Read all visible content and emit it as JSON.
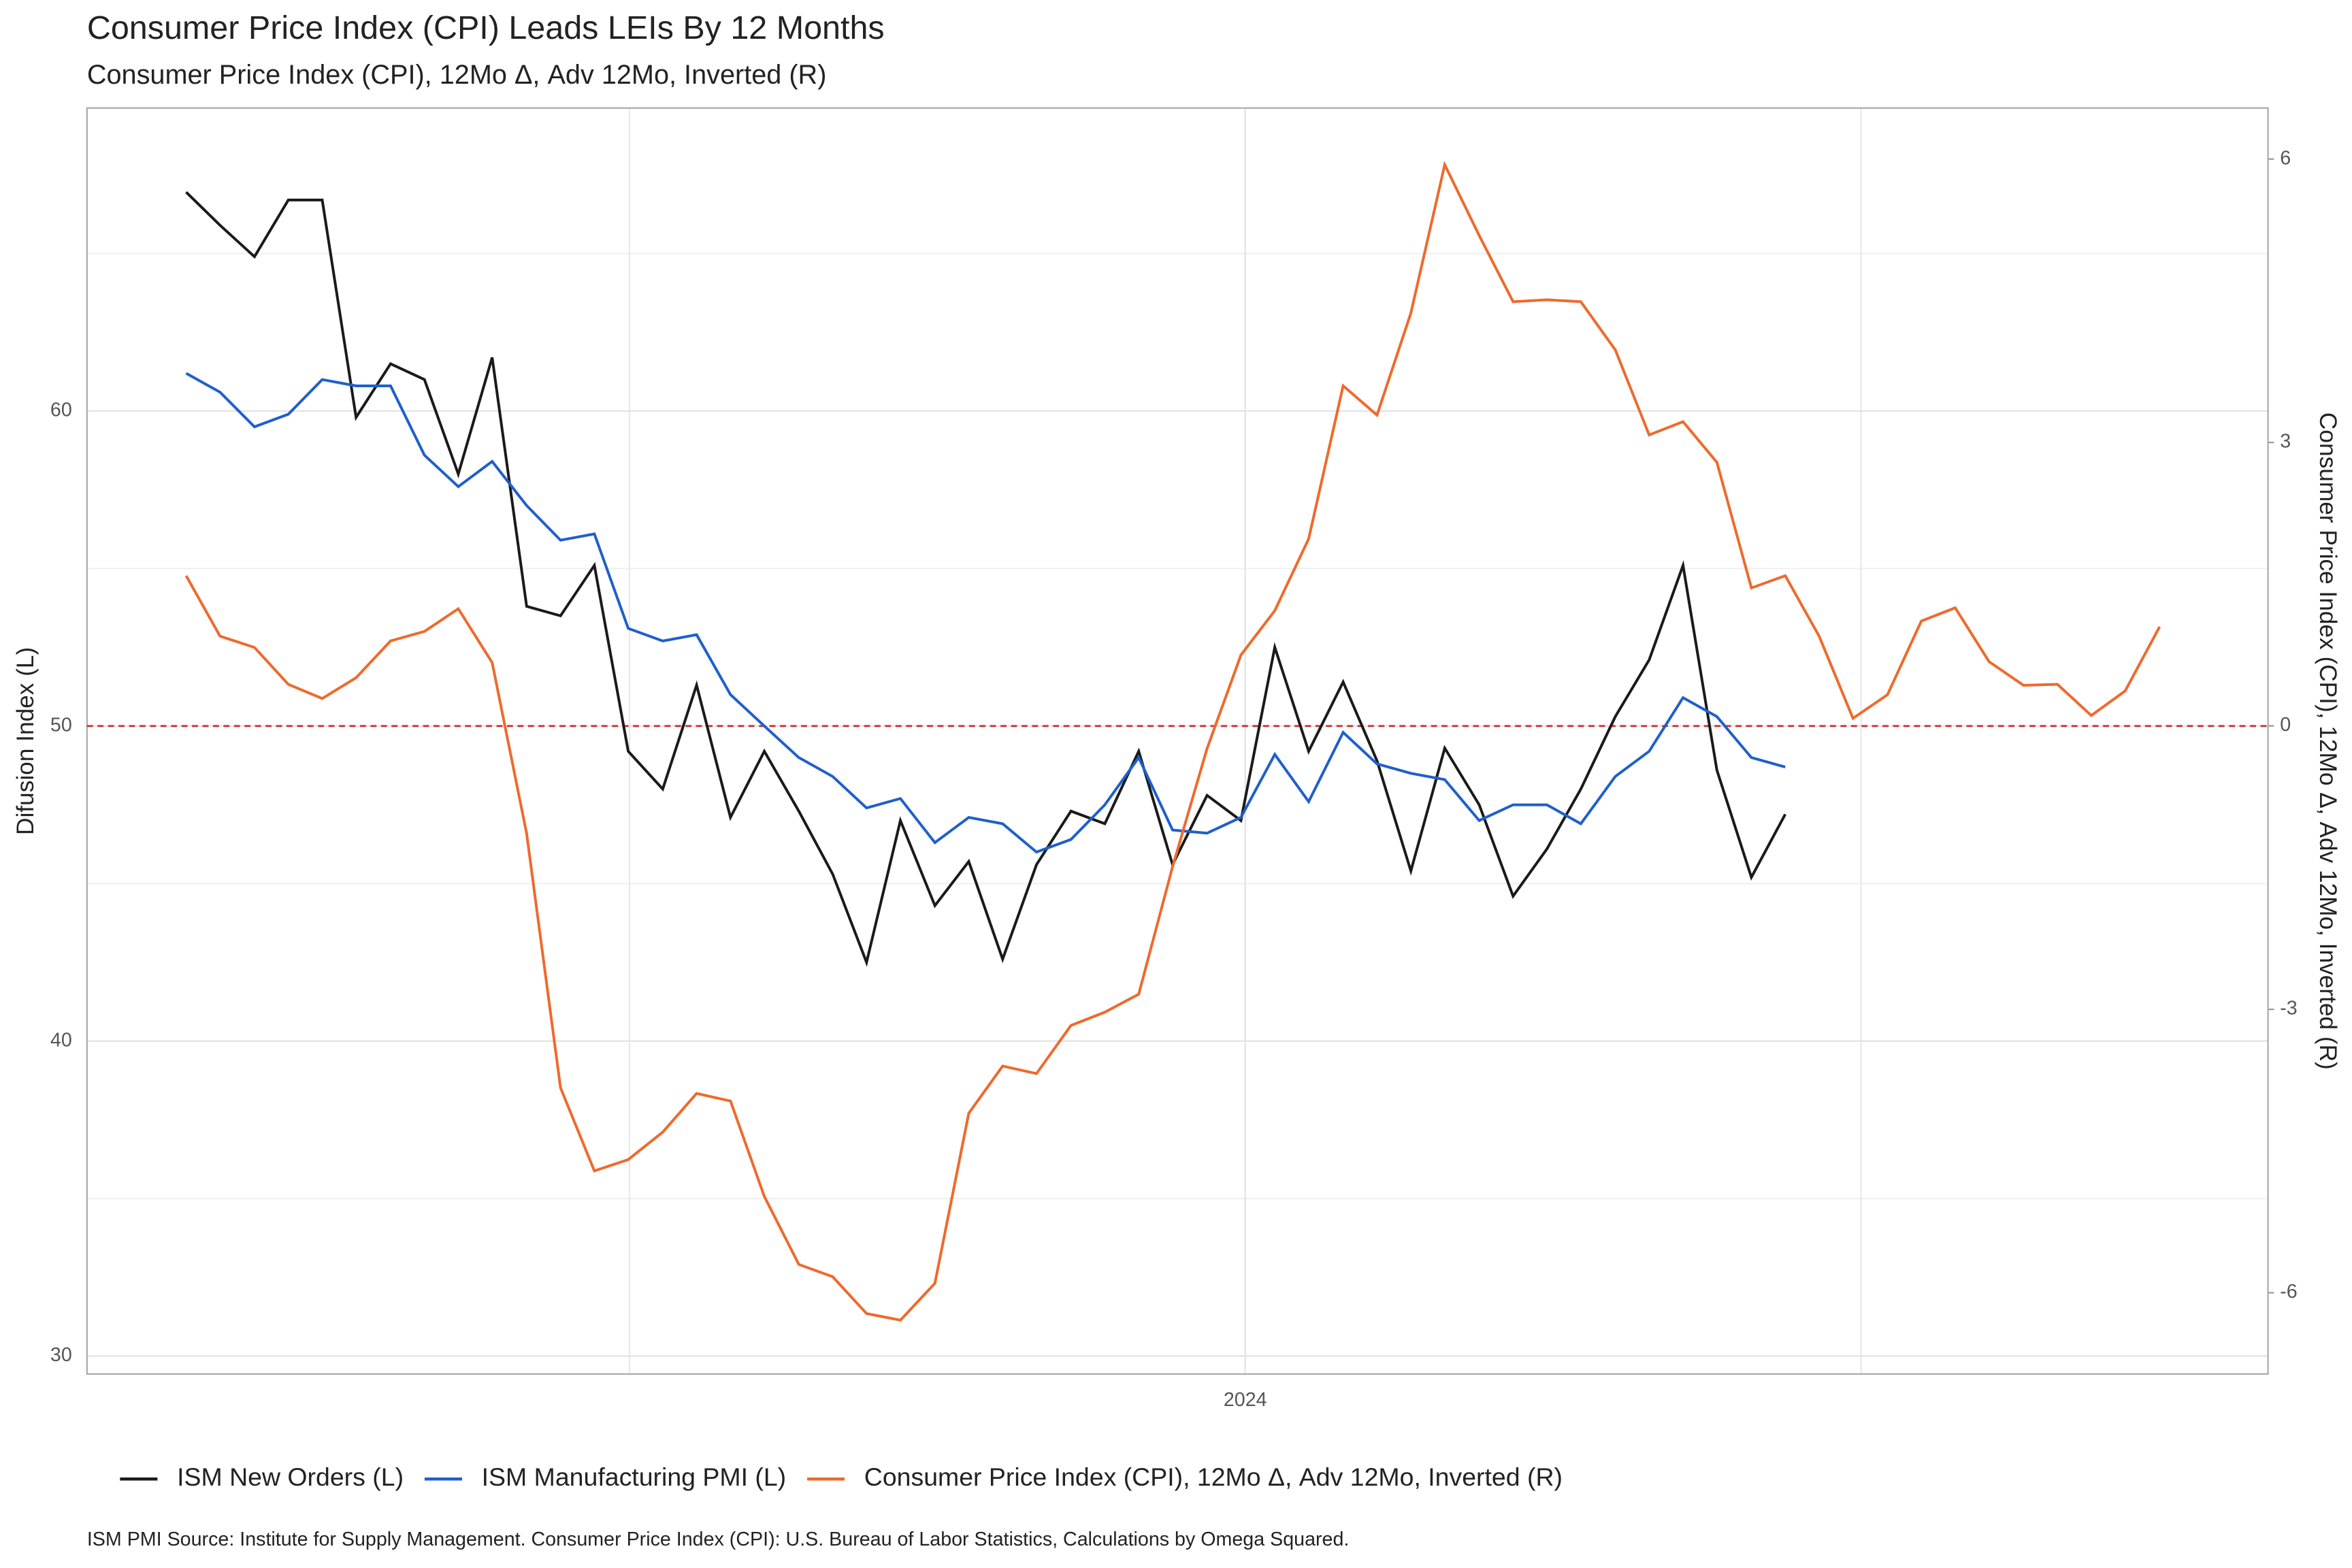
{
  "chart_data": {
    "type": "line",
    "title": "Consumer Price Index (CPI)  Leads LEIs By  12  Months",
    "subtitle": "Consumer Price Index (CPI), 12Mo Δ, Adv 12Mo, Inverted (R)",
    "ylabel": "Difusion Index (L)",
    "y2label": "Consumer Price Index (CPI), 12Mo Δ, Adv 12Mo, Inverted (R)",
    "caption": "ISM PMI Source: Institute for Supply Management. Consumer Price Index (CPI): U.S. Bureau of Labor Statistics, Calculations by Omega Squared.",
    "x": [
      2022.28,
      2022.335,
      2022.391,
      2022.446,
      2022.501,
      2022.556,
      2022.612,
      2022.667,
      2022.722,
      2022.777,
      2022.833,
      2022.888,
      2022.943,
      2022.998,
      2023.054,
      2023.109,
      2023.164,
      2023.219,
      2023.275,
      2023.33,
      2023.385,
      2023.44,
      2023.496,
      2023.551,
      2023.606,
      2023.661,
      2023.717,
      2023.772,
      2023.827,
      2023.882,
      2023.938,
      2023.993,
      2024.048,
      2024.103,
      2024.159,
      2024.214,
      2024.269,
      2024.324,
      2024.38,
      2024.435,
      2024.49,
      2024.545,
      2024.601,
      2024.656,
      2024.711,
      2024.766,
      2024.822,
      2024.877,
      2024.932,
      2024.987,
      2025.043,
      2025.098,
      2025.153,
      2025.208,
      2025.264,
      2025.319,
      2025.374,
      2025.429,
      2025.485
    ],
    "xlim": [
      2022.119,
      2025.661
    ],
    "xticks": [
      2024
    ],
    "xgrid": [
      2023,
      2025
    ],
    "ylim": [
      29.43,
      69.62
    ],
    "yticks": [
      30,
      40,
      50,
      60
    ],
    "ygrid_minor": [
      35,
      45,
      55,
      65
    ],
    "y2lim": [
      -6.86,
      6.54
    ],
    "y2ticks": [
      -6,
      -3,
      0,
      3,
      6
    ],
    "hline": {
      "value": 50,
      "color": "#cc3333"
    },
    "grid": true,
    "legend": "bottom",
    "series": [
      {
        "name": "ISM New Orders (L)",
        "color": "#1a1a1a",
        "values": [
          66.95,
          65.9,
          64.9,
          66.7,
          66.7,
          59.8,
          61.5,
          61.0,
          58.0,
          61.7,
          53.8,
          53.5,
          55.1,
          49.2,
          48.0,
          51.3,
          47.1,
          49.2,
          47.3,
          45.3,
          42.5,
          47.0,
          44.3,
          45.7,
          42.6,
          45.6,
          47.3,
          46.9,
          49.2,
          45.6,
          47.8,
          47.0,
          52.5,
          49.2,
          51.4,
          48.9,
          45.4,
          49.3,
          47.5,
          44.6,
          46.1,
          48.0,
          50.3,
          52.1,
          55.1,
          48.6,
          45.2,
          47.2,
          null,
          null,
          null,
          null,
          null,
          null,
          null,
          null,
          null,
          null,
          null
        ]
      },
      {
        "name": "ISM Manufacturing PMI (L)",
        "color": "#1f5fcc",
        "values": [
          61.2,
          60.6,
          59.5,
          59.9,
          61.0,
          60.8,
          60.8,
          58.6,
          57.6,
          58.4,
          57.0,
          55.9,
          56.1,
          53.1,
          52.7,
          52.9,
          51.0,
          50.0,
          49.0,
          48.4,
          47.4,
          47.7,
          46.3,
          47.1,
          46.9,
          46.0,
          46.4,
          47.5,
          49.0,
          46.7,
          46.6,
          47.1,
          49.1,
          47.6,
          49.8,
          48.8,
          48.5,
          48.3,
          47.0,
          47.5,
          47.5,
          46.9,
          48.4,
          49.2,
          50.9,
          50.3,
          49.0,
          48.7,
          null,
          null,
          null,
          null,
          null,
          null,
          null,
          null,
          null,
          null,
          null
        ]
      },
      {
        "name": "Consumer Price Index (CPI), 12Mo Δ, Adv 12Mo, Inverted (R)",
        "color": "#ee6a2c",
        "axis": "y2",
        "values": [
          1.59,
          0.95,
          0.83,
          0.44,
          0.29,
          0.51,
          0.9,
          1.0,
          1.24,
          0.67,
          -1.14,
          -3.83,
          -4.71,
          -4.59,
          -4.3,
          -3.89,
          -3.97,
          -4.98,
          -5.7,
          -5.83,
          -6.22,
          -6.29,
          -5.9,
          -4.1,
          -3.6,
          -3.68,
          -3.17,
          -3.03,
          -2.84,
          -1.49,
          -0.24,
          0.75,
          1.22,
          1.98,
          3.6,
          3.29,
          4.37,
          5.94,
          5.19,
          4.49,
          4.51,
          4.49,
          3.98,
          3.08,
          3.22,
          2.79,
          1.46,
          1.59,
          0.95,
          0.08,
          0.33,
          1.11,
          1.25,
          0.68,
          0.43,
          0.44,
          0.11,
          0.37,
          1.05
        ]
      }
    ]
  }
}
